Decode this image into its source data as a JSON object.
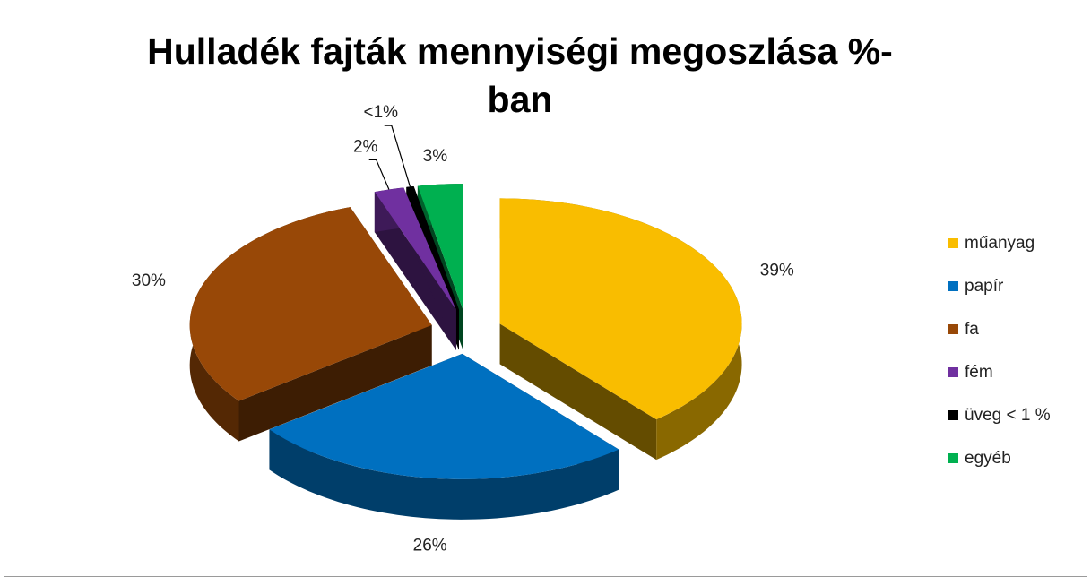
{
  "chart_data": {
    "type": "pie3d",
    "title": "Hulladék fajták mennyiségi megoszlása %-ban",
    "categories": [
      "műanyag",
      "papír",
      "fa",
      "fém",
      "üveg < 1 %",
      "egyéb"
    ],
    "values": [
      39,
      26,
      30,
      2,
      0.5,
      3
    ],
    "value_labels": [
      "39%",
      "26%",
      "30%",
      "2%",
      "<1%",
      "3%"
    ],
    "colors": [
      "#f9bd00",
      "#0070c0",
      "#984807",
      "#7030a0",
      "#000000",
      "#00b050"
    ],
    "legend": "right"
  }
}
